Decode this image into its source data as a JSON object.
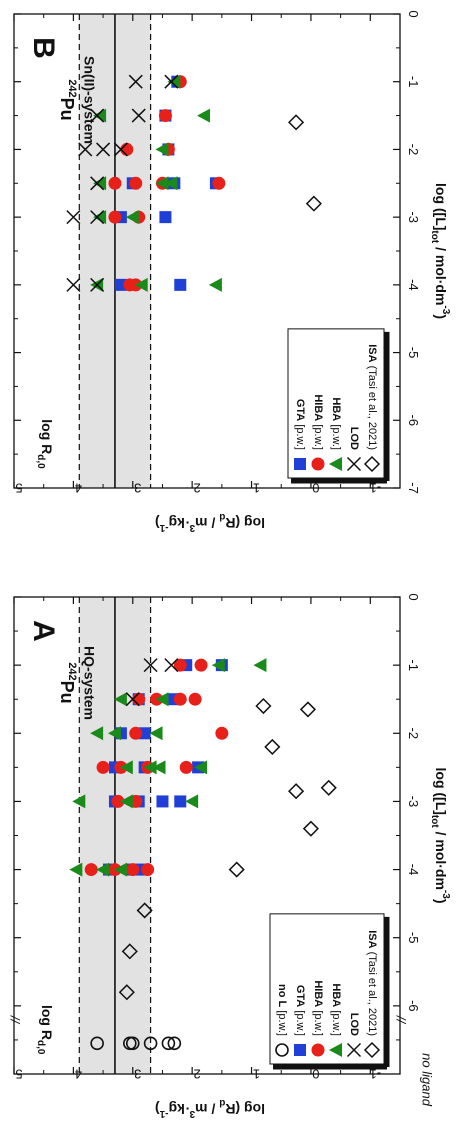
{
  "chart_data": [
    {
      "type": "scatter",
      "panel_label": "B",
      "isotope": "Pu",
      "isotope_mass": "242",
      "system_label": "Sn(II)-system",
      "xlabel": "log ([L]",
      "xlabel_sub": "tot",
      "xlabel_end": " / mol·dm",
      "xlabel_sup": "-3",
      "xlabel_close": ")",
      "ylabel": "log (R",
      "ylabel_sub": "d",
      "ylabel_end": " / m",
      "ylabel_sup1": "3",
      "ylabel_mid": "·kg",
      "ylabel_sup2": "-1",
      "ylabel_close": ")",
      "xlim": [
        -7,
        0
      ],
      "ylim": [
        -1.5,
        5
      ],
      "x_ticks": [
        "-7",
        "-6",
        "-5",
        "-4",
        "-3",
        "-2",
        "-1",
        "0"
      ],
      "y_ticks": [
        "-1",
        "0",
        "1",
        "2",
        "3",
        "4",
        "5"
      ],
      "reference_band": {
        "label": "log R",
        "label_sub": "d,0",
        "center": 3.3,
        "lower": 2.7,
        "upper": 3.9
      },
      "legend_position": "bottom-left",
      "series": [
        {
          "name": "GTA",
          "note": "[p.w.]",
          "marker": "square",
          "color": "#1f3fd6",
          "points": [
            [
              -4,
              3.2
            ],
            [
              -4,
              2.2
            ],
            [
              -3,
              3.2
            ],
            [
              -3,
              2.45
            ],
            [
              -2.5,
              3.0
            ],
            [
              -2.5,
              2.3
            ],
            [
              -2.5,
              1.6
            ],
            [
              -2,
              2.4
            ],
            [
              -1.5,
              2.45
            ],
            [
              -1,
              2.25
            ]
          ]
        },
        {
          "name": "HIBA",
          "note": "[p.w.]",
          "marker": "circle",
          "color": "#e8201a",
          "points": [
            [
              -4,
              3.05
            ],
            [
              -4,
              2.95
            ],
            [
              -3,
              3.3
            ],
            [
              -3,
              2.9
            ],
            [
              -2.5,
              3.3
            ],
            [
              -2.5,
              2.95
            ],
            [
              -2.5,
              2.5
            ],
            [
              -2.5,
              1.55
            ],
            [
              -2,
              3.1
            ],
            [
              -2,
              2.4
            ],
            [
              -1.5,
              2.45
            ],
            [
              -1,
              2.2
            ]
          ]
        },
        {
          "name": "HBA",
          "note": "[p.w.]",
          "marker": "triangle",
          "color": "#1a8a1a",
          "points": [
            [
              -4,
              3.6
            ],
            [
              -4,
              2.85
            ],
            [
              -4,
              1.6
            ],
            [
              -3,
              3.55
            ],
            [
              -3,
              3.0
            ],
            [
              -2.5,
              3.55
            ],
            [
              -2.5,
              2.5
            ],
            [
              -2.5,
              2.35
            ],
            [
              -2,
              2.5
            ],
            [
              -1.5,
              3.55
            ],
            [
              -1.5,
              1.8
            ],
            [
              -1,
              2.3
            ]
          ]
        },
        {
          "name": "LOD",
          "note": "",
          "marker": "x",
          "color": "#111111",
          "points": [
            [
              -4,
              4.0
            ],
            [
              -4,
              3.6
            ],
            [
              -3,
              4.0
            ],
            [
              -3,
              3.6
            ],
            [
              -2.5,
              3.6
            ],
            [
              -2,
              3.8
            ],
            [
              -2,
              3.5
            ],
            [
              -2,
              3.2
            ],
            [
              -1.5,
              3.6
            ],
            [
              -1.5,
              2.9
            ],
            [
              -1,
              2.95
            ],
            [
              -1,
              2.35
            ]
          ]
        },
        {
          "name": "ISA",
          "note": "(Tasi et al., 2021)",
          "marker": "diamond",
          "color": "#111111",
          "points": [
            [
              -1.6,
              0.25
            ],
            [
              -2.8,
              -0.05
            ]
          ]
        }
      ]
    },
    {
      "type": "scatter",
      "panel_label": "A",
      "isotope": "Pu",
      "isotope_mass": "242",
      "system_label": "HQ-system",
      "xlabel": "log ([L]",
      "xlabel_sub": "tot",
      "xlabel_end": " / mol·dm",
      "xlabel_sup": "-3",
      "xlabel_close": ")",
      "ylabel": "log (R",
      "ylabel_sub": "d",
      "ylabel_end": " / m",
      "ylabel_sup1": "3",
      "ylabel_mid": "·kg",
      "ylabel_sup2": "-1",
      "ylabel_close": ")",
      "xlim": [
        -7,
        0
      ],
      "ylim": [
        -1.5,
        5
      ],
      "x_ticks": [
        "-6",
        "-5",
        "-4",
        "-3",
        "-2",
        "-1",
        "0"
      ],
      "y_ticks": [
        "-1",
        "0",
        "1",
        "2",
        "3",
        "4",
        "5"
      ],
      "no_ligand_label": "no ligand",
      "axis_break": "//",
      "reference_band": {
        "label": "log R",
        "label_sub": "d,0",
        "center": 3.3,
        "lower": 2.7,
        "upper": 3.9
      },
      "legend_position": "bottom-left",
      "series": [
        {
          "name": "no L",
          "note": "[p.w.]",
          "marker": "circle-open",
          "color": "#111111",
          "points": [
            [
              -6.55,
              3.6
            ],
            [
              -6.55,
              3.05
            ],
            [
              -6.55,
              3.0
            ],
            [
              -6.55,
              2.7
            ],
            [
              -6.55,
              2.4
            ],
            [
              -6.55,
              2.3
            ]
          ]
        },
        {
          "name": "GTA",
          "note": "[p.w.]",
          "marker": "square",
          "color": "#1f3fd6",
          "points": [
            [
              -4,
              3.4
            ],
            [
              -4,
              3.0
            ],
            [
              -4,
              2.8
            ],
            [
              -3,
              3.3
            ],
            [
              -3,
              2.9
            ],
            [
              -3,
              2.5
            ],
            [
              -3,
              2.2
            ],
            [
              -2.5,
              3.3
            ],
            [
              -2.5,
              2.8
            ],
            [
              -2.5,
              1.9
            ],
            [
              -2,
              3.2
            ],
            [
              -2,
              2.8
            ],
            [
              -1.5,
              2.9
            ],
            [
              -1.5,
              2.3
            ],
            [
              -1,
              2.1
            ],
            [
              -1,
              1.5
            ]
          ]
        },
        {
          "name": "HIBA",
          "note": "[p.w.]",
          "marker": "circle",
          "color": "#e8201a",
          "points": [
            [
              -4,
              3.7
            ],
            [
              -4,
              3.3
            ],
            [
              -4,
              3.0
            ],
            [
              -4,
              2.75
            ],
            [
              -3,
              3.25
            ],
            [
              -3,
              2.95
            ],
            [
              -2.5,
              3.5
            ],
            [
              -2.5,
              3.2
            ],
            [
              -2.5,
              2.75
            ],
            [
              -2.5,
              2.1
            ],
            [
              -2,
              2.95
            ],
            [
              -2,
              1.5
            ],
            [
              -1.5,
              2.9
            ],
            [
              -1.5,
              2.6
            ],
            [
              -1.5,
              2.2
            ],
            [
              -1.5,
              1.95
            ],
            [
              -1,
              2.2
            ],
            [
              -1,
              1.85
            ]
          ]
        },
        {
          "name": "HBA",
          "note": "[p.w.]",
          "marker": "triangle",
          "color": "#1a8a1a",
          "points": [
            [
              -4,
              3.95
            ],
            [
              -4,
              3.5
            ],
            [
              -4,
              3.2
            ],
            [
              -3,
              3.9
            ],
            [
              -3,
              3.1
            ],
            [
              -3,
              2.0
            ],
            [
              -2.5,
              3.1
            ],
            [
              -2.5,
              2.7
            ],
            [
              -2.5,
              2.55
            ],
            [
              -2.5,
              1.85
            ],
            [
              -2,
              3.6
            ],
            [
              -2,
              3.3
            ],
            [
              -2,
              2.6
            ],
            [
              -1.5,
              3.2
            ],
            [
              -1.5,
              2.5
            ],
            [
              -1,
              1.55
            ],
            [
              -1,
              0.85
            ]
          ]
        },
        {
          "name": "LOD",
          "note": "",
          "marker": "x",
          "color": "#111111",
          "points": [
            [
              -1.5,
              3.0
            ],
            [
              -1,
              2.7
            ],
            [
              -1,
              2.35
            ]
          ]
        },
        {
          "name": "ISA",
          "note": "(Tasi et al., 2021)",
          "marker": "diamond",
          "color": "#111111",
          "points": [
            [
              -5.8,
              3.1
            ],
            [
              -5.2,
              3.05
            ],
            [
              -4.6,
              2.8
            ],
            [
              -4.0,
              1.25
            ],
            [
              -3.4,
              0.0
            ],
            [
              -2.85,
              0.25
            ],
            [
              -2.8,
              -0.3
            ],
            [
              -2.2,
              0.65
            ],
            [
              -1.65,
              0.05
            ],
            [
              -1.6,
              0.8
            ]
          ]
        }
      ]
    }
  ]
}
